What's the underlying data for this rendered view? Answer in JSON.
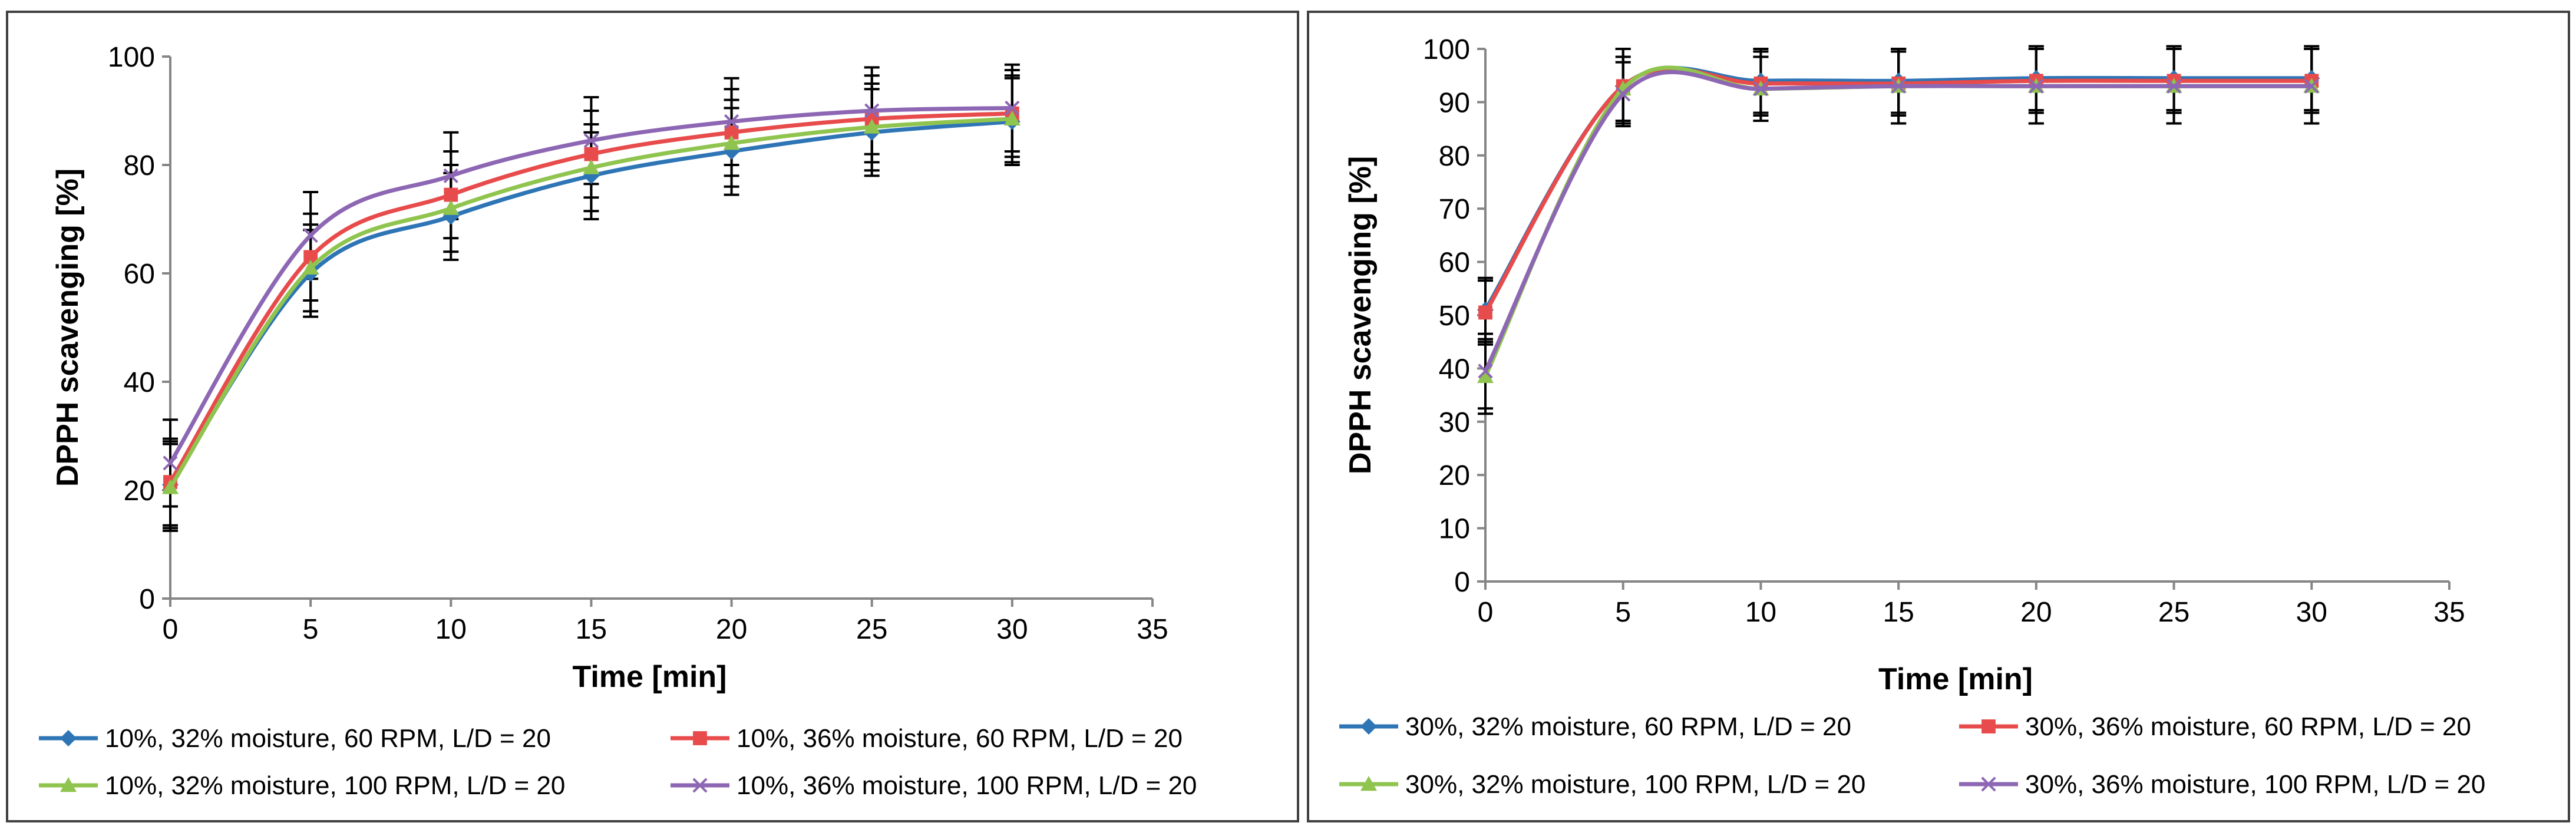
{
  "chart_data": [
    {
      "type": "line",
      "title": "",
      "xlabel": "Time [min]",
      "ylabel": "DPPH scavenging [%]",
      "xlim": [
        0,
        35
      ],
      "ylim": [
        0,
        100
      ],
      "xticks": [
        "0",
        "5",
        "10",
        "15",
        "20",
        "25",
        "30",
        "35"
      ],
      "yticks": [
        "0",
        "20",
        "40",
        "60",
        "80",
        "100"
      ],
      "x": [
        0,
        5,
        10,
        15,
        20,
        25,
        30
      ],
      "grid": false,
      "legend_position": "bottom",
      "series": [
        {
          "name": "10%, 32% moisture, 60 RPM, L/D = 20",
          "color": "#2e75b6",
          "marker": "diamond",
          "values": [
            21,
            60,
            70.5,
            78,
            82.5,
            86,
            88
          ],
          "errors": [
            8,
            8,
            8,
            8,
            8,
            8,
            8
          ]
        },
        {
          "name": "10%, 36% moisture, 60 RPM, L/D = 20",
          "color": "#e84b4b",
          "marker": "square",
          "values": [
            21.5,
            63,
            74.5,
            82,
            86,
            88.5,
            89.5
          ],
          "errors": [
            8,
            8,
            8,
            8,
            8,
            8,
            8
          ]
        },
        {
          "name": "10%, 32% moisture, 100 RPM, L/D = 20",
          "color": "#8fc44f",
          "marker": "triangle",
          "values": [
            20.5,
            61,
            72,
            79.5,
            84,
            87,
            88.5
          ],
          "errors": [
            8,
            8,
            8,
            8,
            8,
            8,
            8
          ]
        },
        {
          "name": "10%, 36% moisture, 100 RPM, L/D = 20",
          "color": "#8d67b3",
          "marker": "x",
          "values": [
            25,
            67,
            78,
            84.5,
            88,
            90,
            90.5
          ],
          "errors": [
            8,
            8,
            8,
            8,
            8,
            8,
            8
          ]
        }
      ]
    },
    {
      "type": "line",
      "title": "",
      "xlabel": "Time [min]",
      "ylabel": "DPPH scavenging [%]",
      "xlim": [
        0,
        35
      ],
      "ylim": [
        0,
        100
      ],
      "xticks": [
        "0",
        "5",
        "10",
        "15",
        "20",
        "25",
        "30",
        "35"
      ],
      "yticks": [
        "0",
        "10",
        "20",
        "30",
        "40",
        "50",
        "60",
        "70",
        "80",
        "90",
        "100"
      ],
      "x": [
        0,
        5,
        10,
        15,
        20,
        25,
        30
      ],
      "grid": false,
      "legend_position": "bottom",
      "series": [
        {
          "name": "30%, 32% moisture, 60 RPM, L/D = 20",
          "color": "#2e75b6",
          "marker": "diamond",
          "values": [
            51,
            93,
            94,
            94,
            94.5,
            94.5,
            94.5
          ],
          "errors": [
            6,
            7,
            6,
            6,
            6,
            6,
            6
          ]
        },
        {
          "name": "30%, 36% moisture, 60 RPM, L/D = 20",
          "color": "#e84b4b",
          "marker": "square",
          "values": [
            50.5,
            93,
            93.5,
            93.5,
            94,
            94,
            94
          ],
          "errors": [
            6,
            7,
            6,
            6,
            6,
            6,
            6
          ]
        },
        {
          "name": "30%, 32% moisture, 100 RPM, L/D = 20",
          "color": "#8fc44f",
          "marker": "triangle",
          "values": [
            38.5,
            92.5,
            92.5,
            93,
            93,
            93,
            93
          ],
          "errors": [
            7,
            6,
            6,
            7,
            7,
            7,
            7
          ]
        },
        {
          "name": "30%, 36% moisture, 100 RPM, L/D = 20",
          "color": "#8d67b3",
          "marker": "x",
          "values": [
            39.5,
            91.5,
            92.5,
            93,
            93,
            93,
            93
          ],
          "errors": [
            7,
            6,
            6,
            7,
            7,
            7,
            7
          ]
        }
      ]
    }
  ]
}
